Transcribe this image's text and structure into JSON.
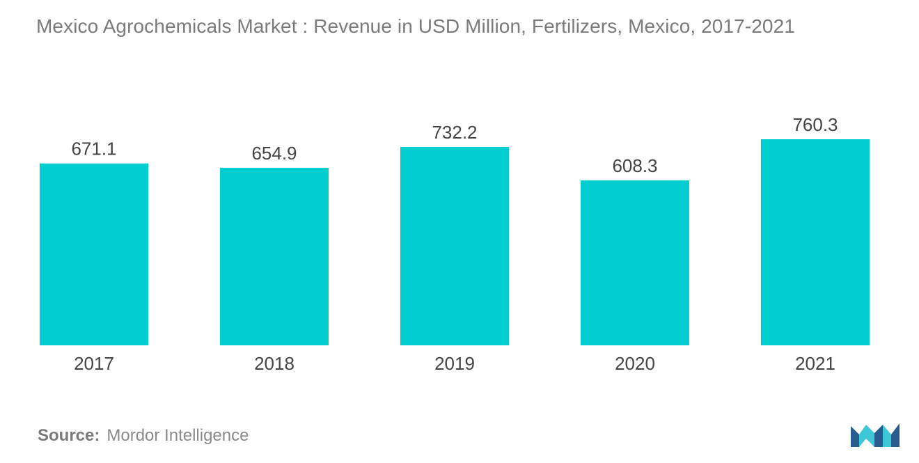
{
  "title": "Mexico Agrochemicals Market :  Revenue in USD Million, Fertilizers, Mexico, 2017-2021",
  "source": {
    "label": "Source:",
    "text": "Mordor Intelligence"
  },
  "logo": {
    "icon": "mordor-intelligence-logo-icon",
    "colors": [
      "#2a5d8f",
      "#3ec7d6"
    ]
  },
  "chart_data": {
    "type": "bar",
    "title": "Mexico Agrochemicals Market :  Revenue in USD Million, Fertilizers, Mexico, 2017-2021",
    "xlabel": "",
    "ylabel": "",
    "categories": [
      "2017",
      "2018",
      "2019",
      "2020",
      "2021"
    ],
    "values": [
      671.1,
      654.9,
      732.2,
      608.3,
      760.3
    ],
    "value_labels": [
      "671.1",
      "654.9",
      "732.2",
      "608.3",
      "760.3"
    ],
    "ylim": [
      0,
      800
    ],
    "grid": false,
    "legend": "none",
    "bar_color": "#00ced1"
  }
}
